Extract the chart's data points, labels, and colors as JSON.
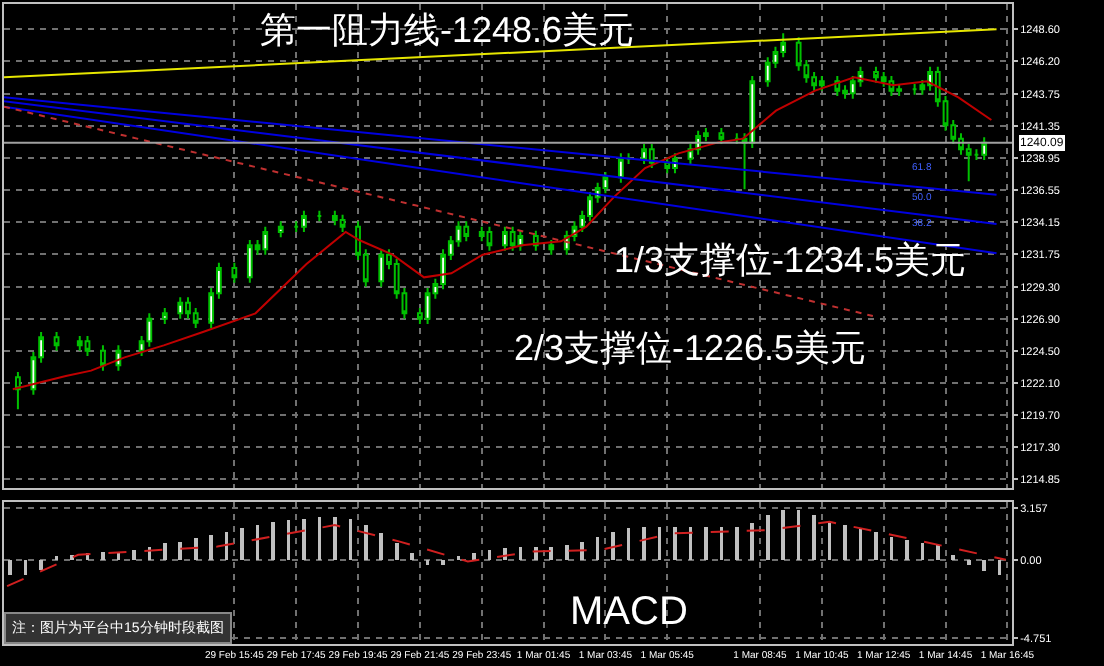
{
  "chart_data": [
    {
      "type": "candlestick",
      "color": "#00c000",
      "annotations": [
        "第一阻力线-1248.6美元",
        "1/3支撑位-1234.5美元",
        "2/3支撑位-1226.5美元",
        "61.8",
        "50.0",
        "38.2"
      ],
      "x": [
        "--02-29T08:45",
        "--02-29T09:15",
        "--02-29T09:30",
        "--02-29T10:00",
        "--02-29T10:45",
        "--02-29T11:00",
        "--02-29T11:30",
        "--02-29T12:00",
        "--02-29T12:45",
        "--02-29T13:00",
        "--02-29T13:30",
        "--02-29T14:00",
        "--02-29T14:15",
        "--02-29T14:30",
        "--02-29T15:00",
        "--02-29T15:15",
        "--02-29T15:45",
        "--02-29T16:15",
        "--02-29T16:30",
        "--02-29T16:45",
        "--02-29T17:15",
        "--02-29T17:45",
        "--02-29T18:00",
        "--02-29T18:30",
        "--02-29T19:00",
        "--02-29T19:15",
        "--02-29T19:45",
        "--02-29T20:00",
        "--02-29T20:30",
        "--02-29T20:45",
        "--02-29T21:00",
        "--02-29T21:15",
        "--02-29T21:45",
        "--02-29T22:00",
        "--02-29T22:15",
        "--02-29T22:30",
        "--02-29T22:45",
        "--02-29T23:00",
        "--02-29T23:15",
        "--02-29T23:45",
        "--03-01T00:00",
        "--03-01T00:30",
        "--03-01T00:45",
        "--03-01T01:00",
        "--03-01T01:30",
        "--03-01T02:00",
        "--03-01T02:30",
        "--03-01T02:45",
        "--03-01T03:00",
        "--03-01T03:15",
        "--03-01T03:30",
        "--03-01T03:45",
        "--03-01T04:15",
        "--03-01T04:30",
        "--03-01T05:00",
        "--03-01T05:15",
        "--03-01T05:45",
        "--03-01T06:00",
        "--03-01T06:30",
        "--03-01T06:45",
        "--03-01T07:00",
        "--03-01T07:30",
        "--03-01T08:00",
        "--03-01T08:15",
        "--03-01T08:30",
        "--03-01T09:00",
        "--03-01T09:15",
        "--03-01T09:30",
        "--03-01T10:00",
        "--03-01T10:15",
        "--03-01T10:30",
        "--03-01T10:45",
        "--03-01T11:15",
        "--03-01T11:30",
        "--03-01T11:45",
        "--03-01T12:00",
        "--03-01T12:30",
        "--03-01T12:45",
        "--03-01T13:00",
        "--03-01T13:15",
        "--03-01T13:45",
        "--03-01T14:00",
        "--03-01T14:15",
        "--03-01T14:30",
        "--03-01T14:45",
        "--03-01T15:00",
        "--03-01T15:15",
        "--03-01T15:30",
        "--03-01T15:45",
        "--03-01T16:00"
      ],
      "ohlc": [
        [
          1222.5,
          1222.9,
          1220.1,
          1221.6
        ],
        [
          1221.6,
          1224.4,
          1221.2,
          1224.0
        ],
        [
          1224.0,
          1225.9,
          1223.6,
          1225.5
        ],
        [
          1225.5,
          1225.9,
          1224.5,
          1224.9
        ],
        [
          1224.9,
          1225.6,
          1224.5,
          1225.2
        ],
        [
          1225.2,
          1225.6,
          1224.1,
          1224.5
        ],
        [
          1224.5,
          1224.9,
          1223.0,
          1223.4
        ],
        [
          1223.4,
          1224.9,
          1223.0,
          1224.5
        ],
        [
          1224.5,
          1225.6,
          1224.1,
          1225.2
        ],
        [
          1225.2,
          1227.3,
          1224.8,
          1226.9
        ],
        [
          1226.9,
          1227.7,
          1226.5,
          1227.3
        ],
        [
          1227.3,
          1228.5,
          1226.9,
          1228.1
        ],
        [
          1228.1,
          1228.5,
          1226.9,
          1227.3
        ],
        [
          1227.3,
          1227.7,
          1226.2,
          1226.6
        ],
        [
          1226.6,
          1229.2,
          1226.2,
          1228.8
        ],
        [
          1228.8,
          1231.1,
          1228.4,
          1230.7
        ],
        [
          1230.7,
          1231.1,
          1229.6,
          1230.0
        ],
        [
          1230.0,
          1232.8,
          1229.6,
          1232.4
        ],
        [
          1232.4,
          1232.8,
          1231.7,
          1232.1
        ],
        [
          1232.1,
          1233.8,
          1231.7,
          1233.4
        ],
        [
          1233.4,
          1234.2,
          1233.0,
          1233.8
        ],
        [
          1233.8,
          1234.2,
          1233.4,
          1233.8
        ],
        [
          1233.8,
          1235.0,
          1233.4,
          1234.6
        ],
        [
          1234.6,
          1235.0,
          1234.2,
          1234.6
        ],
        [
          1234.6,
          1235.0,
          1233.9,
          1234.3
        ],
        [
          1234.3,
          1234.7,
          1233.4,
          1233.8
        ],
        [
          1233.8,
          1234.2,
          1231.3,
          1231.7
        ],
        [
          1231.7,
          1232.1,
          1229.3,
          1229.7
        ],
        [
          1229.7,
          1232.1,
          1229.3,
          1231.7
        ],
        [
          1231.7,
          1232.1,
          1230.6,
          1231.0
        ],
        [
          1231.0,
          1231.4,
          1228.4,
          1228.8
        ],
        [
          1228.8,
          1229.2,
          1226.9,
          1227.3
        ],
        [
          1227.3,
          1227.7,
          1226.5,
          1226.9
        ],
        [
          1226.9,
          1229.2,
          1226.5,
          1228.8
        ],
        [
          1228.8,
          1229.9,
          1228.4,
          1229.5
        ],
        [
          1229.5,
          1232.1,
          1229.1,
          1231.7
        ],
        [
          1231.7,
          1233.1,
          1231.3,
          1232.7
        ],
        [
          1232.7,
          1234.2,
          1232.3,
          1233.8
        ],
        [
          1233.8,
          1234.2,
          1232.7,
          1233.1
        ],
        [
          1233.1,
          1233.8,
          1232.7,
          1233.4
        ],
        [
          1233.4,
          1233.8,
          1232.0,
          1232.4
        ],
        [
          1232.4,
          1233.8,
          1232.0,
          1233.4
        ],
        [
          1233.4,
          1233.8,
          1232.0,
          1232.4
        ],
        [
          1232.4,
          1233.5,
          1232.0,
          1233.1
        ],
        [
          1233.1,
          1233.5,
          1232.0,
          1232.4
        ],
        [
          1232.4,
          1232.8,
          1231.7,
          1232.1
        ],
        [
          1232.1,
          1233.5,
          1231.7,
          1233.1
        ],
        [
          1233.1,
          1234.2,
          1232.7,
          1233.8
        ],
        [
          1233.8,
          1235.0,
          1233.4,
          1234.6
        ],
        [
          1234.6,
          1236.4,
          1234.2,
          1236.0
        ],
        [
          1236.0,
          1237.1,
          1235.6,
          1236.7
        ],
        [
          1236.7,
          1237.9,
          1236.3,
          1237.5
        ],
        [
          1237.5,
          1239.3,
          1237.1,
          1238.9
        ],
        [
          1238.9,
          1239.3,
          1238.5,
          1238.9
        ],
        [
          1238.9,
          1240.0,
          1238.5,
          1239.6
        ],
        [
          1239.6,
          1240.0,
          1238.2,
          1238.6
        ],
        [
          1238.6,
          1239.0,
          1237.8,
          1238.2
        ],
        [
          1238.2,
          1239.3,
          1237.8,
          1238.9
        ],
        [
          1238.9,
          1240.0,
          1238.5,
          1239.6
        ],
        [
          1239.6,
          1241.0,
          1239.2,
          1240.6
        ],
        [
          1240.6,
          1241.2,
          1240.2,
          1240.8
        ],
        [
          1240.8,
          1241.2,
          1240.0,
          1240.4
        ],
        [
          1240.4,
          1240.8,
          1240.0,
          1240.4
        ],
        [
          1240.4,
          1240.8,
          1236.6,
          1240.1
        ],
        [
          1240.1,
          1245.1,
          1239.7,
          1244.7
        ],
        [
          1244.7,
          1246.5,
          1244.3,
          1246.1
        ],
        [
          1246.1,
          1247.3,
          1245.7,
          1246.9
        ],
        [
          1246.9,
          1248.3,
          1246.5,
          1247.6
        ],
        [
          1247.6,
          1248.0,
          1245.5,
          1245.9
        ],
        [
          1245.9,
          1246.3,
          1244.6,
          1245.0
        ],
        [
          1245.0,
          1245.4,
          1244.0,
          1244.4
        ],
        [
          1244.4,
          1245.1,
          1244.0,
          1244.7
        ],
        [
          1244.7,
          1245.1,
          1243.6,
          1244.0
        ],
        [
          1244.0,
          1244.4,
          1243.4,
          1243.8
        ],
        [
          1243.8,
          1245.1,
          1243.4,
          1244.7
        ],
        [
          1244.7,
          1245.8,
          1244.3,
          1245.4
        ],
        [
          1245.4,
          1245.8,
          1244.6,
          1245.0
        ],
        [
          1245.0,
          1245.4,
          1244.3,
          1244.7
        ],
        [
          1244.7,
          1245.1,
          1243.6,
          1244.0
        ],
        [
          1244.0,
          1244.5,
          1243.6,
          1244.1
        ],
        [
          1244.1,
          1244.5,
          1243.7,
          1244.1
        ],
        [
          1244.1,
          1244.8,
          1243.7,
          1244.4
        ],
        [
          1244.4,
          1245.8,
          1244.0,
          1245.4
        ],
        [
          1245.4,
          1245.8,
          1242.8,
          1243.2
        ],
        [
          1243.2,
          1243.6,
          1241.0,
          1241.4
        ],
        [
          1241.4,
          1241.8,
          1240.0,
          1240.4
        ],
        [
          1240.4,
          1240.8,
          1239.2,
          1239.6
        ],
        [
          1239.6,
          1240.0,
          1237.2,
          1239.2
        ],
        [
          1239.2,
          1239.6,
          1238.8,
          1239.2
        ],
        [
          1239.2,
          1240.5,
          1238.8,
          1240.1
        ]
      ],
      "series": [
        {
          "type": "line",
          "color": "#c00000",
          "line_style": "solid",
          "x": [
            "--02-29T08:35",
            "--02-29T10:18",
            "--02-29T11:07",
            "--02-29T12:12",
            "--02-29T13:28",
            "--02-29T14:44",
            "--02-29T16:26",
            "--02-29T18:05",
            "--02-29T19:21",
            "--02-29T19:47",
            "--02-29T20:52",
            "--02-29T21:53",
            "--02-29T22:46",
            "--02-29T23:47",
            "--03-01T01:03",
            "--03-01T02:19",
            "--03-01T03:08",
            "--03-01T04:01",
            "--03-01T05:02",
            "--03-01T06:07",
            "--03-01T07:22",
            "--03-01T08:12",
            "--03-01T09:16",
            "--03-01T10:32",
            "--03-01T11:48",
            "--03-01T13:04",
            "--03-01T14:09",
            "--03-01T15:10",
            "--03-01T16:14"
          ],
          "values": [
            1221.6,
            1222.6,
            1223.0,
            1224.0,
            1224.9,
            1225.9,
            1227.3,
            1231.0,
            1233.4,
            1232.8,
            1231.7,
            1230.0,
            1230.3,
            1231.7,
            1232.4,
            1232.7,
            1233.8,
            1236.0,
            1238.2,
            1239.3,
            1240.1,
            1240.4,
            1242.5,
            1244.0,
            1245.0,
            1244.4,
            1244.7,
            1243.5,
            1241.8
          ]
        },
        {
          "type": "line",
          "color": "#e6e600",
          "line_style": "solid",
          "x": [
            "--02-29T08:18",
            "--03-01T16:24"
          ],
          "values": [
            1245.0,
            1248.6
          ]
        },
        {
          "type": "line",
          "color": "#0000e0",
          "line_style": "solid",
          "x": [
            "--02-29T08:18",
            "--03-01T16:24"
          ],
          "values": [
            1243.5,
            1236.2
          ]
        },
        {
          "type": "line",
          "color": "#0000e0",
          "line_style": "solid",
          "x": [
            "--02-29T08:18",
            "--03-01T16:24"
          ],
          "values": [
            1243.2,
            1234.0
          ]
        },
        {
          "type": "line",
          "color": "#0000e0",
          "line_style": "solid",
          "x": [
            "--02-29T08:18",
            "--03-01T16:24"
          ],
          "values": [
            1242.8,
            1231.8
          ]
        },
        {
          "type": "line",
          "color": "#c03030",
          "line_style": "dotted",
          "x": [
            "--02-29T08:18",
            "--02-29T21:36",
            "--03-01T12:24"
          ],
          "values": [
            1242.8,
            1235.4,
            1227.1
          ]
        }
      ],
      "ref_lines": [
        {
          "axis": "y",
          "value": 1240.09,
          "label": "1240.09",
          "color": "#a0a0a0"
        }
      ],
      "xlim": [
        "--02-29T08:18",
        "--03-01T16:54"
      ],
      "ylim": [
        1214.2,
        1250.5
      ],
      "yticks": [
        {
          "value": 1248.6,
          "label": "1248.60"
        },
        {
          "value": 1246.2,
          "label": "1246.20"
        },
        {
          "value": 1243.75,
          "label": "1243.75"
        },
        {
          "value": 1241.35,
          "label": "1241.35"
        },
        {
          "value": 1238.95,
          "label": "1238.95"
        },
        {
          "value": 1236.55,
          "label": "1236.55"
        },
        {
          "value": 1234.15,
          "label": "1234.15"
        },
        {
          "value": 1231.75,
          "label": "1231.75"
        },
        {
          "value": 1229.3,
          "label": "1229.30"
        },
        {
          "value": 1226.9,
          "label": "1226.90"
        },
        {
          "value": 1224.5,
          "label": "1224.50"
        },
        {
          "value": 1222.1,
          "label": "1222.10"
        },
        {
          "value": 1219.7,
          "label": "1219.70"
        },
        {
          "value": 1217.3,
          "label": "1217.30"
        },
        {
          "value": 1214.85,
          "label": "1214.85"
        }
      ],
      "xticks": [
        {
          "value": "--02-29T15:45",
          "label": null
        },
        {
          "value": "--02-29T17:45",
          "label": null
        },
        {
          "value": "--02-29T19:45",
          "label": null
        },
        {
          "value": "--02-29T21:45",
          "label": null
        },
        {
          "value": "--02-29T23:45",
          "label": null
        },
        {
          "value": "--03-01T01:45",
          "label": null
        },
        {
          "value": "--03-01T03:45",
          "label": null
        },
        {
          "value": "--03-01T05:45",
          "label": null
        },
        {
          "value": "--03-01T08:45",
          "label": null
        },
        {
          "value": "--03-01T10:45",
          "label": null
        },
        {
          "value": "--03-01T12:45",
          "label": null
        },
        {
          "value": "--03-01T14:45",
          "label": null
        },
        {
          "value": "--03-01T16:45",
          "label": null
        }
      ],
      "tick_labels": "y",
      "grid": true
    },
    {
      "type": "bar",
      "annotations": [
        "MACD",
        "注：图片为平台中15分钟时段截图"
      ],
      "x": [
        "--02-29T08:30",
        "--02-29T09:00",
        "--02-29T09:30",
        "--02-29T10:00",
        "--02-29T10:30",
        "--02-29T11:00",
        "--02-29T11:30",
        "--02-29T12:00",
        "--02-29T12:30",
        "--02-29T13:00",
        "--02-29T13:30",
        "--02-29T14:00",
        "--02-29T14:30",
        "--02-29T15:00",
        "--02-29T15:30",
        "--02-29T16:00",
        "--02-29T16:30",
        "--02-29T17:00",
        "--02-29T17:30",
        "--02-29T18:00",
        "--02-29T18:30",
        "--02-29T19:00",
        "--02-29T19:30",
        "--02-29T20:00",
        "--02-29T20:30",
        "--02-29T21:00",
        "--02-29T21:30",
        "--02-29T22:00",
        "--02-29T22:30",
        "--02-29T23:00",
        "--02-29T23:30",
        "--03-01T00:00",
        "--03-01T00:30",
        "--03-01T01:00",
        "--03-01T01:30",
        "--03-01T02:00",
        "--03-01T02:30",
        "--03-01T03:00",
        "--03-01T03:30",
        "--03-01T04:00",
        "--03-01T04:30",
        "--03-01T05:00",
        "--03-01T05:30",
        "--03-01T06:00",
        "--03-01T06:30",
        "--03-01T07:00",
        "--03-01T07:30",
        "--03-01T08:00",
        "--03-01T08:30",
        "--03-01T09:00",
        "--03-01T09:30",
        "--03-01T10:00",
        "--03-01T10:30",
        "--03-01T11:00",
        "--03-01T11:30",
        "--03-01T12:00",
        "--03-01T12:30",
        "--03-01T13:00",
        "--03-01T13:30",
        "--03-01T14:00",
        "--03-01T14:30",
        "--03-01T15:00",
        "--03-01T15:30",
        "--03-01T16:00",
        "--03-01T16:30"
      ],
      "series": [
        {
          "color": "#c0c0c0",
          "values": [
            -0.9,
            -0.9,
            -0.6,
            0.2,
            0.3,
            0.4,
            0.5,
            0.5,
            0.6,
            0.8,
            1.0,
            1.1,
            1.3,
            1.5,
            1.7,
            1.9,
            2.1,
            2.3,
            2.4,
            2.5,
            2.6,
            2.6,
            2.5,
            2.1,
            1.6,
            1.0,
            0.4,
            -0.3,
            -0.3,
            0.2,
            0.4,
            0.6,
            0.7,
            0.8,
            0.8,
            0.8,
            0.9,
            1.1,
            1.4,
            1.7,
            1.9,
            2.0,
            2.0,
            2.0,
            2.0,
            2.0,
            2.0,
            2.0,
            2.2,
            2.7,
            3.0,
            3.0,
            2.7,
            2.3,
            2.1,
            1.9,
            1.7,
            1.4,
            1.2,
            1.0,
            0.9,
            0.3,
            -0.3,
            -0.7,
            -0.9
          ]
        },
        {
          "type": "line",
          "color": "#d02020",
          "line_style": "dashed",
          "x": [
            "--02-29T08:24",
            "--02-29T10:42",
            "--02-29T15:12",
            "--02-29T19:00",
            "--02-29T21:06",
            "--02-29T23:18",
            "--03-01T01:24",
            "--03-01T03:36",
            "--03-01T05:54",
            "--03-01T09:00",
            "--03-01T11:00",
            "--03-01T13:48",
            "--03-01T16:42"
          ],
          "values": [
            -1.6,
            0.3,
            0.8,
            2.1,
            1.1,
            -0.1,
            0.5,
            0.6,
            1.6,
            1.8,
            2.3,
            1.2,
            0
          ]
        }
      ],
      "xlim": [
        "--02-29T08:18",
        "--03-01T16:54"
      ],
      "ylim": [
        -5.1,
        3.5
      ],
      "yticks": [
        {
          "value": 3.157,
          "label": "3.157"
        },
        {
          "value": 0,
          "label": "0.00"
        },
        {
          "value": -4.751,
          "label": "-4.751"
        }
      ],
      "xticks": [
        {
          "value": "--02-29T15:45",
          "label": "29 Feb 15:45"
        },
        {
          "value": "--02-29T17:45",
          "label": "29 Feb 17:45"
        },
        {
          "value": "--02-29T19:45",
          "label": "29 Feb 19:45"
        },
        {
          "value": "--02-29T21:45",
          "label": "29 Feb 21:45"
        },
        {
          "value": "--02-29T23:45",
          "label": "29 Feb 23:45"
        },
        {
          "value": "--03-01T01:45",
          "label": "1 Mar 01:45"
        },
        {
          "value": "--03-01T03:45",
          "label": "1 Mar 03:45"
        },
        {
          "value": "--03-01T05:45",
          "label": "1 Mar 05:45"
        },
        {
          "value": "--03-01T08:45",
          "label": "1 Mar 08:45"
        },
        {
          "value": "--03-01T10:45",
          "label": "1 Mar 10:45"
        },
        {
          "value": "--03-01T12:45",
          "label": "1 Mar 12:45"
        },
        {
          "value": "--03-01T14:45",
          "label": "1 Mar 14:45"
        },
        {
          "value": "--03-01T16:45",
          "label": "1 Mar 16:45"
        }
      ],
      "grid": true
    }
  ]
}
